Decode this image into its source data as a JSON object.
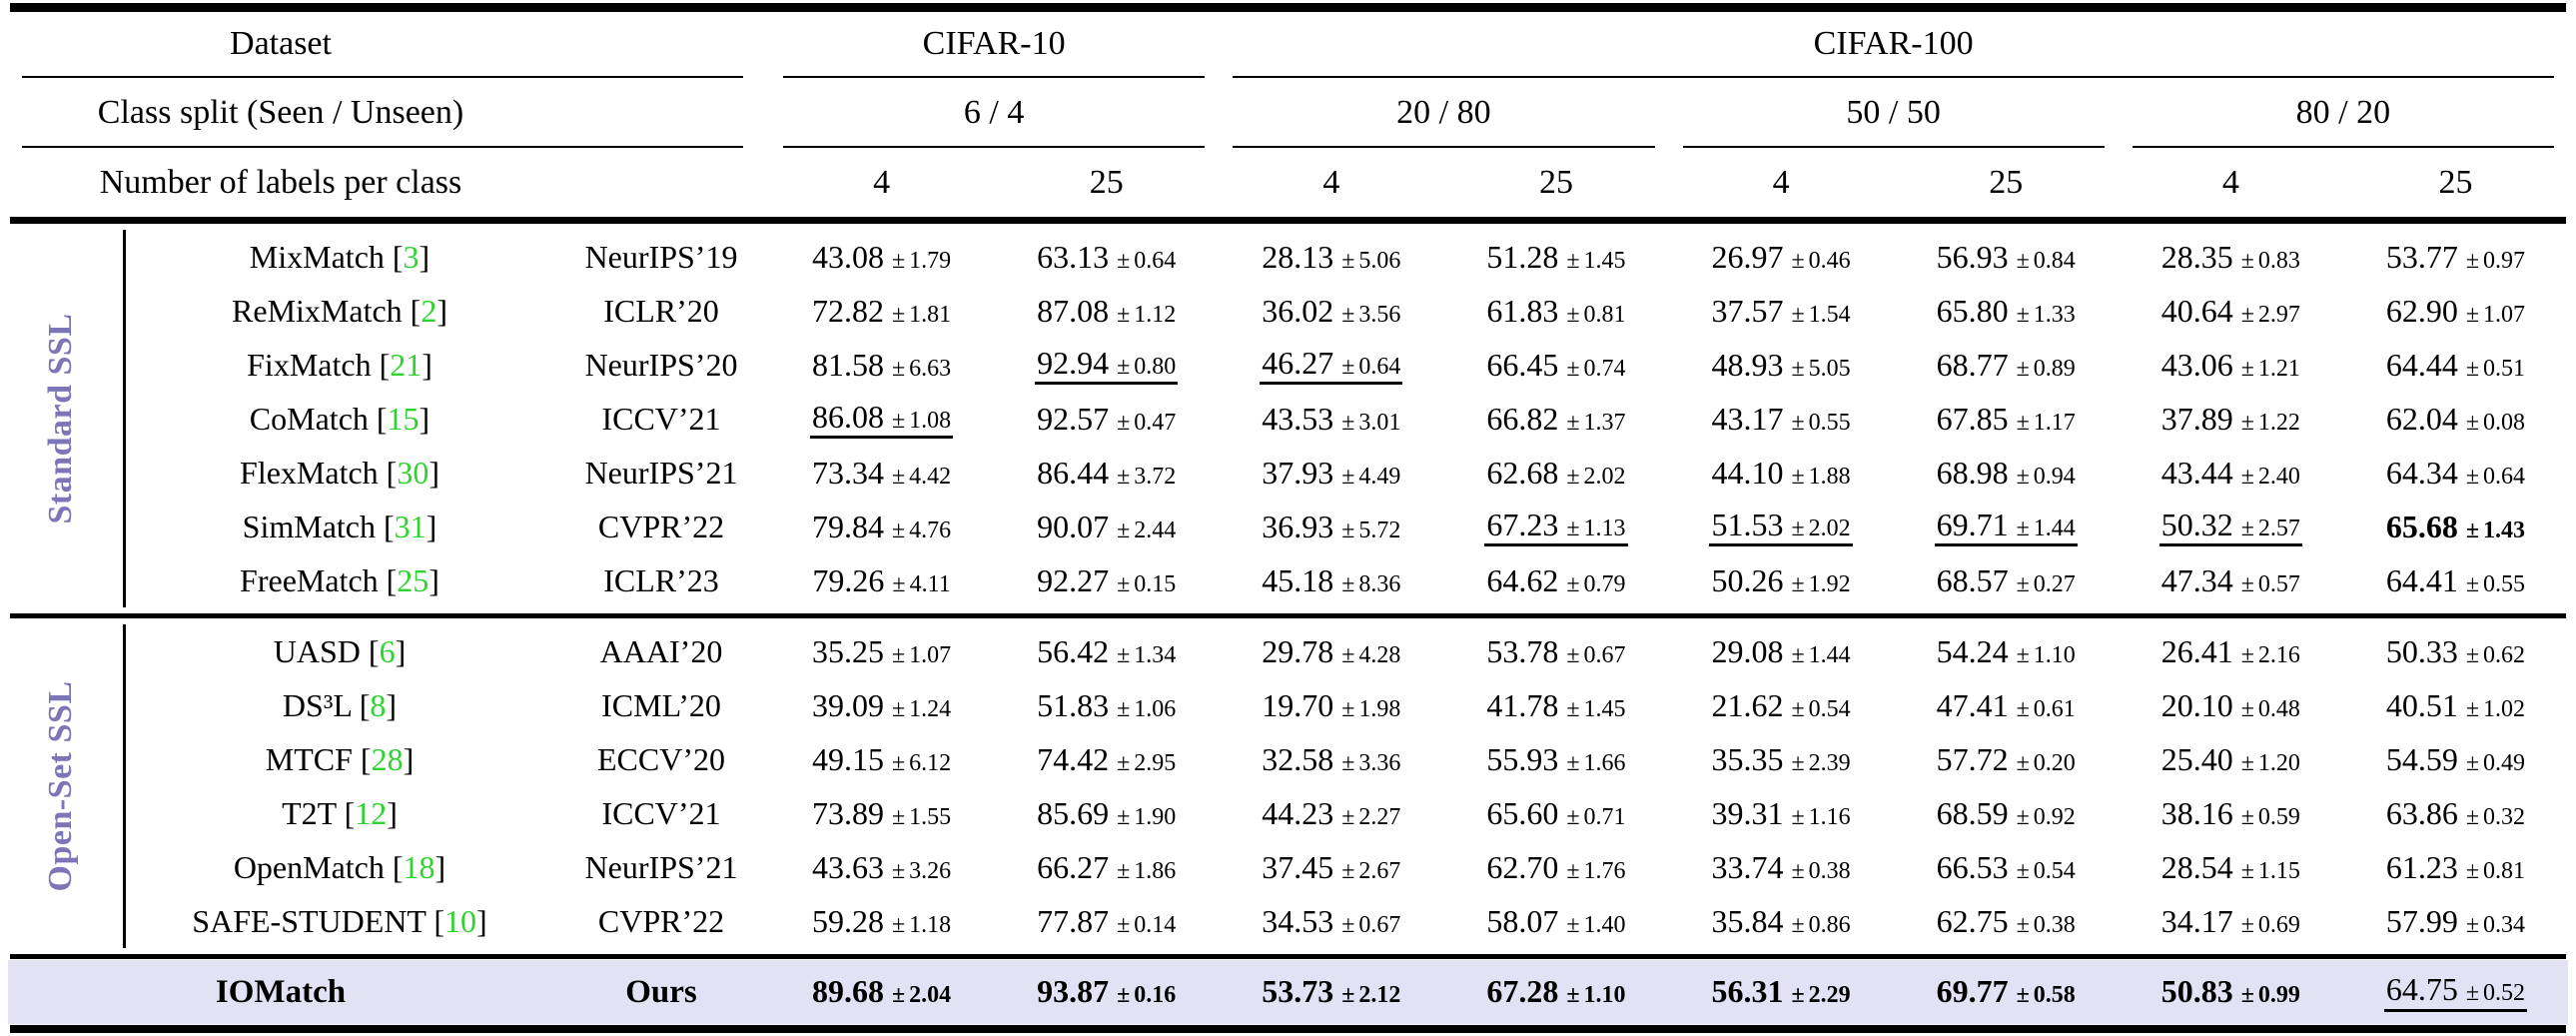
{
  "colors": {
    "citation_green": "#2fd32f",
    "group_label_purple": "#7c76b8",
    "highlight_lavender": "#e3e2f5"
  },
  "table": {
    "header": {
      "dataset_label": "Dataset",
      "class_split_label": "Class split (Seen / Unseen)",
      "labels_per_class_label": "Number of labels per class",
      "datasets": [
        {
          "name": "CIFAR-10",
          "splits": [
            {
              "label": "6 / 4"
            }
          ]
        },
        {
          "name": "CIFAR-100",
          "splits": [
            {
              "label": "20 / 80"
            },
            {
              "label": "50 / 50"
            },
            {
              "label": "80 / 20"
            }
          ]
        }
      ],
      "labels_per_class": [
        "4",
        "25",
        "4",
        "25",
        "4",
        "25",
        "4",
        "25"
      ]
    },
    "groups": [
      {
        "name": "Standard SSL",
        "rows": [
          {
            "method": "MixMatch",
            "cite": "3",
            "venue": "NeurIPS’19",
            "cells": [
              {
                "v": "43.08",
                "s": "1.79",
                "style": ""
              },
              {
                "v": "63.13",
                "s": "0.64",
                "style": ""
              },
              {
                "v": "28.13",
                "s": "5.06",
                "style": ""
              },
              {
                "v": "51.28",
                "s": "1.45",
                "style": ""
              },
              {
                "v": "26.97",
                "s": "0.46",
                "style": ""
              },
              {
                "v": "56.93",
                "s": "0.84",
                "style": ""
              },
              {
                "v": "28.35",
                "s": "0.83",
                "style": ""
              },
              {
                "v": "53.77",
                "s": "0.97",
                "style": ""
              }
            ]
          },
          {
            "method": "ReMixMatch",
            "cite": "2",
            "venue": "ICLR’20",
            "cells": [
              {
                "v": "72.82",
                "s": "1.81",
                "style": ""
              },
              {
                "v": "87.08",
                "s": "1.12",
                "style": ""
              },
              {
                "v": "36.02",
                "s": "3.56",
                "style": ""
              },
              {
                "v": "61.83",
                "s": "0.81",
                "style": ""
              },
              {
                "v": "37.57",
                "s": "1.54",
                "style": ""
              },
              {
                "v": "65.80",
                "s": "1.33",
                "style": ""
              },
              {
                "v": "40.64",
                "s": "2.97",
                "style": ""
              },
              {
                "v": "62.90",
                "s": "1.07",
                "style": ""
              }
            ]
          },
          {
            "method": "FixMatch",
            "cite": "21",
            "venue": "NeurIPS’20",
            "cells": [
              {
                "v": "81.58",
                "s": "6.63",
                "style": ""
              },
              {
                "v": "92.94",
                "s": "0.80",
                "style": "u"
              },
              {
                "v": "46.27",
                "s": "0.64",
                "style": "u"
              },
              {
                "v": "66.45",
                "s": "0.74",
                "style": ""
              },
              {
                "v": "48.93",
                "s": "5.05",
                "style": ""
              },
              {
                "v": "68.77",
                "s": "0.89",
                "style": ""
              },
              {
                "v": "43.06",
                "s": "1.21",
                "style": ""
              },
              {
                "v": "64.44",
                "s": "0.51",
                "style": ""
              }
            ]
          },
          {
            "method": "CoMatch",
            "cite": "15",
            "venue": "ICCV’21",
            "cells": [
              {
                "v": "86.08",
                "s": "1.08",
                "style": "u"
              },
              {
                "v": "92.57",
                "s": "0.47",
                "style": ""
              },
              {
                "v": "43.53",
                "s": "3.01",
                "style": ""
              },
              {
                "v": "66.82",
                "s": "1.37",
                "style": ""
              },
              {
                "v": "43.17",
                "s": "0.55",
                "style": ""
              },
              {
                "v": "67.85",
                "s": "1.17",
                "style": ""
              },
              {
                "v": "37.89",
                "s": "1.22",
                "style": ""
              },
              {
                "v": "62.04",
                "s": "0.08",
                "style": ""
              }
            ]
          },
          {
            "method": "FlexMatch",
            "cite": "30",
            "venue": "NeurIPS’21",
            "cells": [
              {
                "v": "73.34",
                "s": "4.42",
                "style": ""
              },
              {
                "v": "86.44",
                "s": "3.72",
                "style": ""
              },
              {
                "v": "37.93",
                "s": "4.49",
                "style": ""
              },
              {
                "v": "62.68",
                "s": "2.02",
                "style": ""
              },
              {
                "v": "44.10",
                "s": "1.88",
                "style": ""
              },
              {
                "v": "68.98",
                "s": "0.94",
                "style": ""
              },
              {
                "v": "43.44",
                "s": "2.40",
                "style": ""
              },
              {
                "v": "64.34",
                "s": "0.64",
                "style": ""
              }
            ]
          },
          {
            "method": "SimMatch",
            "cite": "31",
            "venue": "CVPR’22",
            "cells": [
              {
                "v": "79.84",
                "s": "4.76",
                "style": ""
              },
              {
                "v": "90.07",
                "s": "2.44",
                "style": ""
              },
              {
                "v": "36.93",
                "s": "5.72",
                "style": ""
              },
              {
                "v": "67.23",
                "s": "1.13",
                "style": "u"
              },
              {
                "v": "51.53",
                "s": "2.02",
                "style": "u"
              },
              {
                "v": "69.71",
                "s": "1.44",
                "style": "u"
              },
              {
                "v": "50.32",
                "s": "2.57",
                "style": "u"
              },
              {
                "v": "65.68",
                "s": "1.43",
                "style": "b"
              }
            ]
          },
          {
            "method": "FreeMatch",
            "cite": "25",
            "venue": "ICLR’23",
            "cells": [
              {
                "v": "79.26",
                "s": "4.11",
                "style": ""
              },
              {
                "v": "92.27",
                "s": "0.15",
                "style": ""
              },
              {
                "v": "45.18",
                "s": "8.36",
                "style": ""
              },
              {
                "v": "64.62",
                "s": "0.79",
                "style": ""
              },
              {
                "v": "50.26",
                "s": "1.92",
                "style": ""
              },
              {
                "v": "68.57",
                "s": "0.27",
                "style": ""
              },
              {
                "v": "47.34",
                "s": "0.57",
                "style": ""
              },
              {
                "v": "64.41",
                "s": "0.55",
                "style": ""
              }
            ]
          }
        ]
      },
      {
        "name": "Open-Set SSL",
        "rows": [
          {
            "method": "UASD",
            "cite": "6",
            "venue": "AAAI’20",
            "cells": [
              {
                "v": "35.25",
                "s": "1.07",
                "style": ""
              },
              {
                "v": "56.42",
                "s": "1.34",
                "style": ""
              },
              {
                "v": "29.78",
                "s": "4.28",
                "style": ""
              },
              {
                "v": "53.78",
                "s": "0.67",
                "style": ""
              },
              {
                "v": "29.08",
                "s": "1.44",
                "style": ""
              },
              {
                "v": "54.24",
                "s": "1.10",
                "style": ""
              },
              {
                "v": "26.41",
                "s": "2.16",
                "style": ""
              },
              {
                "v": "50.33",
                "s": "0.62",
                "style": ""
              }
            ]
          },
          {
            "method": "DS³L",
            "cite": "8",
            "venue": "ICML’20",
            "cells": [
              {
                "v": "39.09",
                "s": "1.24",
                "style": ""
              },
              {
                "v": "51.83",
                "s": "1.06",
                "style": ""
              },
              {
                "v": "19.70",
                "s": "1.98",
                "style": ""
              },
              {
                "v": "41.78",
                "s": "1.45",
                "style": ""
              },
              {
                "v": "21.62",
                "s": "0.54",
                "style": ""
              },
              {
                "v": "47.41",
                "s": "0.61",
                "style": ""
              },
              {
                "v": "20.10",
                "s": "0.48",
                "style": ""
              },
              {
                "v": "40.51",
                "s": "1.02",
                "style": ""
              }
            ]
          },
          {
            "method": "MTCF",
            "cite": "28",
            "venue": "ECCV’20",
            "cells": [
              {
                "v": "49.15",
                "s": "6.12",
                "style": ""
              },
              {
                "v": "74.42",
                "s": "2.95",
                "style": ""
              },
              {
                "v": "32.58",
                "s": "3.36",
                "style": ""
              },
              {
                "v": "55.93",
                "s": "1.66",
                "style": ""
              },
              {
                "v": "35.35",
                "s": "2.39",
                "style": ""
              },
              {
                "v": "57.72",
                "s": "0.20",
                "style": ""
              },
              {
                "v": "25.40",
                "s": "1.20",
                "style": ""
              },
              {
                "v": "54.59",
                "s": "0.49",
                "style": ""
              }
            ]
          },
          {
            "method": "T2T",
            "cite": "12",
            "venue": "ICCV’21",
            "cells": [
              {
                "v": "73.89",
                "s": "1.55",
                "style": ""
              },
              {
                "v": "85.69",
                "s": "1.90",
                "style": ""
              },
              {
                "v": "44.23",
                "s": "2.27",
                "style": ""
              },
              {
                "v": "65.60",
                "s": "0.71",
                "style": ""
              },
              {
                "v": "39.31",
                "s": "1.16",
                "style": ""
              },
              {
                "v": "68.59",
                "s": "0.92",
                "style": ""
              },
              {
                "v": "38.16",
                "s": "0.59",
                "style": ""
              },
              {
                "v": "63.86",
                "s": "0.32",
                "style": ""
              }
            ]
          },
          {
            "method": "OpenMatch",
            "cite": "18",
            "venue": "NeurIPS’21",
            "cells": [
              {
                "v": "43.63",
                "s": "3.26",
                "style": ""
              },
              {
                "v": "66.27",
                "s": "1.86",
                "style": ""
              },
              {
                "v": "37.45",
                "s": "2.67",
                "style": ""
              },
              {
                "v": "62.70",
                "s": "1.76",
                "style": ""
              },
              {
                "v": "33.74",
                "s": "0.38",
                "style": ""
              },
              {
                "v": "66.53",
                "s": "0.54",
                "style": ""
              },
              {
                "v": "28.54",
                "s": "1.15",
                "style": ""
              },
              {
                "v": "61.23",
                "s": "0.81",
                "style": ""
              }
            ]
          },
          {
            "method": "SAFE-STUDENT",
            "cite": "10",
            "venue": "CVPR’22",
            "cells": [
              {
                "v": "59.28",
                "s": "1.18",
                "style": ""
              },
              {
                "v": "77.87",
                "s": "0.14",
                "style": ""
              },
              {
                "v": "34.53",
                "s": "0.67",
                "style": ""
              },
              {
                "v": "58.07",
                "s": "1.40",
                "style": ""
              },
              {
                "v": "35.84",
                "s": "0.86",
                "style": ""
              },
              {
                "v": "62.75",
                "s": "0.38",
                "style": ""
              },
              {
                "v": "34.17",
                "s": "0.69",
                "style": ""
              },
              {
                "v": "57.99",
                "s": "0.34",
                "style": ""
              }
            ]
          }
        ]
      }
    ],
    "final_row": {
      "method": "IOMatch",
      "venue": "Ours",
      "cells": [
        {
          "v": "89.68",
          "s": "2.04",
          "style": "b"
        },
        {
          "v": "93.87",
          "s": "0.16",
          "style": "b"
        },
        {
          "v": "53.73",
          "s": "2.12",
          "style": "b"
        },
        {
          "v": "67.28",
          "s": "1.10",
          "style": "b"
        },
        {
          "v": "56.31",
          "s": "2.29",
          "style": "b"
        },
        {
          "v": "69.77",
          "s": "0.58",
          "style": "b"
        },
        {
          "v": "50.83",
          "s": "0.99",
          "style": "b"
        },
        {
          "v": "64.75",
          "s": "0.52",
          "style": "u"
        }
      ]
    }
  }
}
